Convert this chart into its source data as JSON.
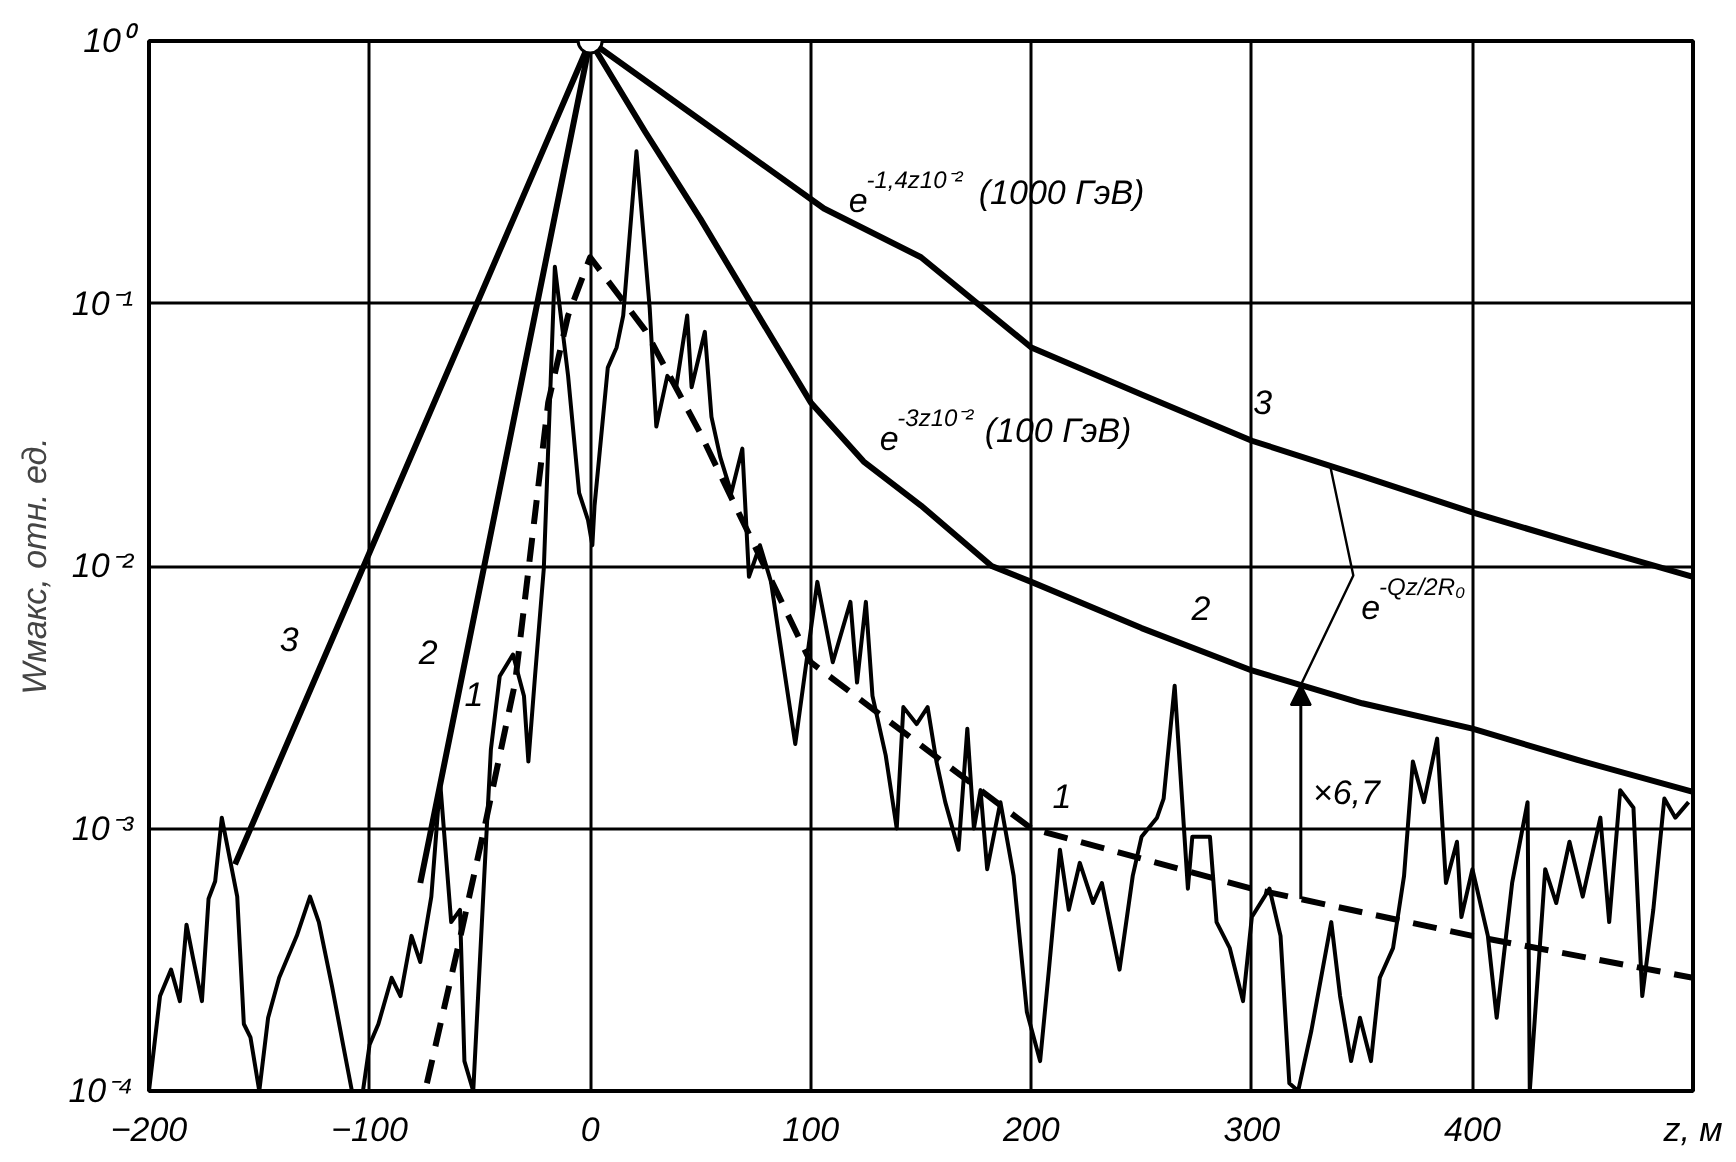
{
  "chart_data": {
    "type": "line",
    "xlabel": "z, м",
    "ylabel": "Wмакс, отн. ед.",
    "log": "y",
    "grid": true,
    "xlim": [
      -200,
      500
    ],
    "ylim": [
      0.0001,
      1
    ],
    "xticks": [
      -200,
      -100,
      0,
      100,
      200,
      300,
      400
    ],
    "yticks": [
      {
        "value": 1,
        "label": "10⁰"
      },
      {
        "value": 0.1,
        "label": "10⁻¹"
      },
      {
        "value": 0.01,
        "label": "10⁻²"
      },
      {
        "value": 0.001,
        "label": "10⁻³"
      },
      {
        "value": 0.0001,
        "label": "10⁻⁴"
      }
    ],
    "series": [
      {
        "color": "#000000",
        "line_style": "solid",
        "name": null,
        "x": [
          -200,
          -195,
          -190,
          -186,
          -183,
          -180,
          -176,
          -173,
          -170,
          -167,
          -160,
          -157,
          -154,
          -150,
          -146,
          -141,
          -133,
          -127,
          -123,
          -117,
          -112,
          -108,
          -103,
          -100,
          -96,
          -90,
          -86,
          -81,
          -77,
          -72,
          -68,
          -63,
          -59,
          -57,
          -53,
          -48,
          -45,
          -41,
          -35,
          -30,
          -28,
          -25,
          -21,
          -16,
          -10,
          -5,
          -1,
          1,
          2,
          8,
          12,
          15,
          21,
          27,
          30,
          35,
          39,
          44,
          46,
          52,
          55,
          59,
          64,
          69,
          72,
          77,
          82,
          93,
          103,
          110,
          118,
          121,
          125,
          128,
          134,
          139,
          142,
          148,
          153,
          157,
          161,
          167,
          171,
          174,
          177,
          180,
          186,
          192,
          198,
          204,
          208,
          213,
          217,
          222,
          228,
          232,
          240,
          246,
          250,
          257,
          260,
          265,
          271,
          273,
          281,
          284,
          290,
          296,
          300,
          308,
          313,
          317,
          321,
          327,
          336,
          340,
          345,
          349,
          354,
          358,
          364,
          369,
          373,
          378,
          384,
          388,
          393,
          395,
          400,
          407,
          411,
          418,
          425,
          426,
          433,
          438,
          444,
          450,
          458,
          462,
          467,
          473,
          477,
          482,
          487,
          492,
          498
        ],
        "values": [
          0.0001,
          0.00023,
          0.00029,
          0.00022,
          0.00043,
          0.00032,
          0.00022,
          0.00054,
          0.00063,
          0.0011,
          0.00055,
          0.00018,
          0.00016,
          0.0001,
          0.00019,
          0.00027,
          0.00039,
          0.00055,
          0.00044,
          0.00025,
          0.00015,
          0.0001,
          0.0001,
          0.00015,
          0.00018,
          0.00027,
          0.00023,
          0.00039,
          0.00031,
          0.00055,
          0.0015,
          0.00044,
          0.00049,
          0.00013,
          0.0001,
          0.00066,
          0.002,
          0.0038,
          0.0046,
          0.0032,
          0.0018,
          0.0038,
          0.0098,
          0.138,
          0.053,
          0.019,
          0.015,
          0.012,
          0.017,
          0.057,
          0.068,
          0.09,
          0.38,
          0.096,
          0.034,
          0.053,
          0.048,
          0.09,
          0.048,
          0.078,
          0.037,
          0.026,
          0.019,
          0.028,
          0.0091,
          0.012,
          0.0087,
          0.0021,
          0.0087,
          0.0043,
          0.0073,
          0.0036,
          0.0073,
          0.0032,
          0.0019,
          0.001,
          0.0029,
          0.0025,
          0.0029,
          0.0018,
          0.00126,
          0.00083,
          0.0024,
          0.001,
          0.0014,
          0.0007,
          0.00126,
          0.00066,
          0.0002,
          0.00013,
          0.00029,
          0.00083,
          0.00049,
          0.00074,
          0.00052,
          0.00062,
          0.00029,
          0.00066,
          0.00093,
          0.0011,
          0.0013,
          0.0035,
          0.00059,
          0.00093,
          0.00093,
          0.00044,
          0.00035,
          0.00022,
          0.00046,
          0.00059,
          0.00039,
          0.000107,
          0.0001,
          0.00017,
          0.00044,
          0.00023,
          0.00013,
          0.00019,
          0.00013,
          0.00027,
          0.00035,
          0.00066,
          0.0018,
          0.00126,
          0.0022,
          0.00062,
          0.00089,
          0.00046,
          0.0007,
          0.00039,
          0.00019,
          0.00062,
          0.00126,
          0.0001,
          0.0007,
          0.00052,
          0.00089,
          0.00055,
          0.0011,
          0.00044,
          0.0014,
          0.0012,
          0.00023,
          0.00049,
          0.0013,
          0.0011,
          0.00126
        ]
      },
      {
        "color": "#000000",
        "line_style": "dashed",
        "name": "1",
        "x": [
          -74,
          -60,
          -48,
          -34,
          -19,
          -10,
          0,
          25,
          50,
          100,
          200,
          300,
          400,
          500
        ],
        "values": [
          0.000107,
          0.00035,
          0.001,
          0.0036,
          0.042,
          0.09,
          0.15,
          0.079,
          0.032,
          0.0043,
          0.001,
          0.00059,
          0.00039,
          0.00027
        ]
      },
      {
        "color": "#000000",
        "line_style": "solid",
        "name": "2",
        "x": [
          -77,
          0,
          25,
          50,
          73,
          100,
          124,
          150,
          182,
          200,
          250,
          300,
          350,
          400,
          450,
          500
        ],
        "values": [
          0.00062,
          1,
          0.45,
          0.21,
          0.1,
          0.042,
          0.025,
          0.017,
          0.01,
          0.0087,
          0.0058,
          0.004,
          0.003,
          0.0024,
          0.0018,
          0.00138
        ]
      },
      {
        "color": "#000000",
        "line_style": "solid",
        "name": "3",
        "x": [
          -161,
          0,
          50,
          106,
          150,
          200,
          250,
          300,
          350,
          400,
          450,
          500
        ],
        "values": [
          0.00073,
          1,
          0.5,
          0.23,
          0.15,
          0.068,
          0.045,
          0.03,
          0.022,
          0.016,
          0.012,
          0.0091
        ]
      },
      {
        "type": "scatter",
        "color": "#000000",
        "marker": "circle",
        "x": [
          0
        ],
        "values": [
          1
        ]
      }
    ],
    "annotations": [
      {
        "text": "e$^{-1,4z10⁻²}$(1000 ГэВ)",
        "x": 110,
        "y": 0.2
      },
      {
        "text": "e$^{-3z10⁻²}$(100 ГэВ)",
        "x": 124,
        "y": 0.025
      },
      "e$^{-Qz/2R₀}$",
      "×6,7"
    ]
  }
}
